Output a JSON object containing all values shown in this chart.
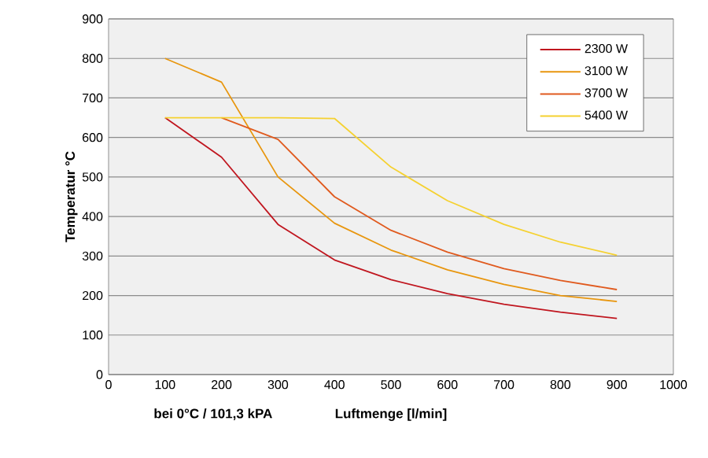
{
  "chart_data": {
    "type": "line",
    "xlabel": "Luftmenge [l/min]",
    "ylabel": "Temperatur °C",
    "annotations": [
      "bei 0°C / 101,3 kPA"
    ],
    "series": [
      {
        "name": "2300 W",
        "color": "#c0161f",
        "x": [
          100,
          200,
          300,
          400,
          500,
          600,
          700,
          800,
          900
        ],
        "values": [
          650,
          550,
          380,
          290,
          240,
          205,
          178,
          158,
          142
        ]
      },
      {
        "name": "3100 W",
        "color": "#e8960e",
        "x": [
          100,
          200,
          300,
          400,
          500,
          600,
          700,
          800,
          900
        ],
        "values": [
          800,
          740,
          500,
          383,
          315,
          265,
          228,
          200,
          185
        ]
      },
      {
        "name": "3700 W",
        "color": "#e05a1e",
        "x": [
          200,
          300,
          400,
          500,
          600,
          700,
          800,
          900
        ],
        "values": [
          650,
          595,
          450,
          365,
          310,
          268,
          238,
          215
        ]
      },
      {
        "name": "5400 W",
        "color": "#f5d130",
        "x": [
          100,
          200,
          300,
          400,
          500,
          600,
          700,
          800,
          900
        ],
        "values": [
          650,
          650,
          650,
          648,
          525,
          440,
          380,
          335,
          302
        ]
      }
    ],
    "xlim": [
      0,
      1000
    ],
    "xticks": [
      0,
      100,
      200,
      300,
      400,
      500,
      600,
      700,
      800,
      900,
      1000
    ],
    "ylim": [
      0,
      900
    ],
    "yticks": [
      0,
      100,
      200,
      300,
      400,
      500,
      600,
      700,
      800,
      900
    ],
    "grid": "y",
    "legend": "top right",
    "marker": "none",
    "line_style": "solid"
  }
}
